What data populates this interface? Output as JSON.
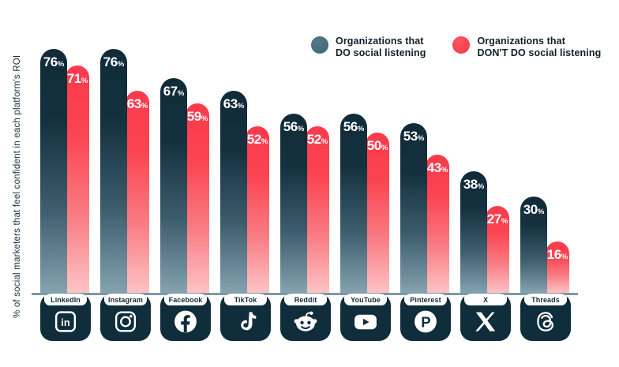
{
  "y_axis_label": "% of social marketers that feel confident in each platform's ROI",
  "legend": {
    "do": {
      "line1": "Organizations that",
      "line2": "DO social listening",
      "color": "#46707f"
    },
    "dont": {
      "line1": "Organizations that",
      "line2": "DON'T DO social listening",
      "color": "#fb4350"
    }
  },
  "platforms": [
    {
      "label": "LinkedIn",
      "icon": "linkedin-icon"
    },
    {
      "label": "Instagram",
      "icon": "instagram-icon"
    },
    {
      "label": "Facebook",
      "icon": "facebook-icon"
    },
    {
      "label": "TikTok",
      "icon": "tiktok-icon"
    },
    {
      "label": "Reddit",
      "icon": "reddit-icon"
    },
    {
      "label": "YouTube",
      "icon": "youtube-icon"
    },
    {
      "label": "Pinterest",
      "icon": "pinterest-icon"
    },
    {
      "label": "X",
      "icon": "x-icon"
    },
    {
      "label": "Threads",
      "icon": "threads-icon"
    }
  ],
  "chart_data": {
    "type": "bar",
    "categories": [
      "LinkedIn",
      "Instagram",
      "Facebook",
      "TikTok",
      "Reddit",
      "YouTube",
      "Pinterest",
      "X",
      "Threads"
    ],
    "series": [
      {
        "name": "Organizations that DO social listening",
        "values": [
          76,
          76,
          67,
          63,
          56,
          56,
          53,
          38,
          30
        ],
        "color_top": "#102b38",
        "color_bottom": "#84a2af"
      },
      {
        "name": "Organizations that DON'T DO social listening",
        "values": [
          71,
          63,
          59,
          52,
          52,
          50,
          43,
          27,
          16
        ],
        "color_top": "#fb3a4c",
        "color_bottom": "#fdc3c5"
      }
    ],
    "unit": "%",
    "ylabel": "% of social marketers that feel confident in each platform's ROI",
    "ylim": [
      0,
      100
    ],
    "grid": false,
    "legend_position": "top-right",
    "value_labels": true
  },
  "colors": {
    "navy": "#0f2d3a",
    "red": "#fb3a4c",
    "axis_line": "#7d98a5",
    "background": "#ffffff"
  }
}
